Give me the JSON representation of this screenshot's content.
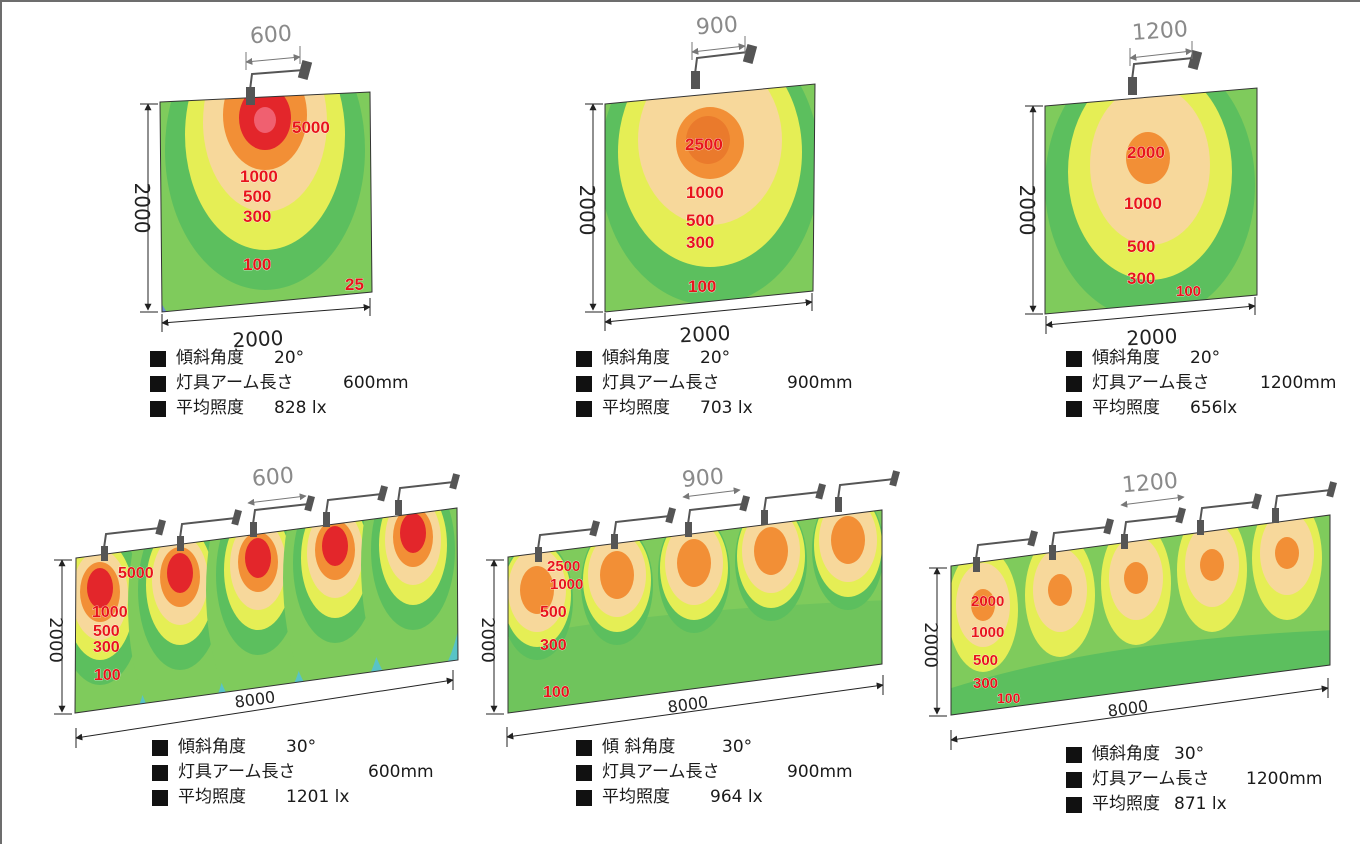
{
  "panels": [
    {
      "id": "p1",
      "span_label": "600",
      "width_label": "2000",
      "height_label": "2000",
      "iso_labels": [
        "5000",
        "1000",
        "500",
        "300",
        "100",
        "25"
      ],
      "caption": [
        {
          "label": "傾斜角度",
          "value": "20°"
        },
        {
          "label": "灯具アーム長さ",
          "value": "600mm"
        },
        {
          "label": "平均照度",
          "value": "828 lx"
        }
      ]
    },
    {
      "id": "p2",
      "span_label": "900",
      "width_label": "2000",
      "height_label": "2000",
      "iso_labels": [
        "2500",
        "1000",
        "500",
        "300",
        "100"
      ],
      "caption": [
        {
          "label": "傾斜角度",
          "value": "20°"
        },
        {
          "label": "灯具アーム長さ",
          "value": "900mm"
        },
        {
          "label": "平均照度",
          "value": "703 lx"
        }
      ]
    },
    {
      "id": "p3",
      "span_label": "1200",
      "width_label": "2000",
      "height_label": "2000",
      "iso_labels": [
        "2000",
        "1000",
        "500",
        "300",
        "100"
      ],
      "caption": [
        {
          "label": "傾斜角度",
          "value": "20°"
        },
        {
          "label": "灯具アーム長さ",
          "value": "1200mm"
        },
        {
          "label": "平均照度",
          "value": "656lx"
        }
      ]
    },
    {
      "id": "p4",
      "span_label": "600",
      "width_label": "8000",
      "height_label": "2000",
      "iso_labels": [
        "5000",
        "1000",
        "500",
        "300",
        "100"
      ],
      "caption": [
        {
          "label": "傾斜角度",
          "value": "30°"
        },
        {
          "label": "灯具アーム長さ",
          "value": "600mm"
        },
        {
          "label": "平均照度",
          "value": "1201 lx"
        }
      ]
    },
    {
      "id": "p5",
      "span_label": "900",
      "width_label": "8000",
      "height_label": "2000",
      "iso_labels": [
        "2500",
        "1000",
        "500",
        "300",
        "100"
      ],
      "caption": [
        {
          "label": "傾 斜角度",
          "value": "30°"
        },
        {
          "label": "灯具アーム長さ",
          "value": "900mm"
        },
        {
          "label": "平均照度",
          "value": "964 lx"
        }
      ]
    },
    {
      "id": "p6",
      "span_label": "1200",
      "width_label": "8000",
      "height_label": "2000",
      "iso_labels": [
        "2000",
        "1000",
        "500",
        "300",
        "100"
      ],
      "caption": [
        {
          "label": "傾斜角度",
          "value": "30°"
        },
        {
          "label": "灯具アーム長さ",
          "value": "1200mm"
        },
        {
          "label": "平均照度",
          "value": "871 lx"
        }
      ]
    }
  ],
  "colors": {
    "contour_25": "#58c3c7",
    "contour_100": "#7fcb5c",
    "contour_300": "#5cbf5e",
    "contour_500": "#e5ee55",
    "contour_1000": "#f7d89b",
    "contour_2500": "#f28f36",
    "contour_5000": "#e3262b",
    "iso_text": "#e8141b",
    "luminaire": "#555555"
  }
}
